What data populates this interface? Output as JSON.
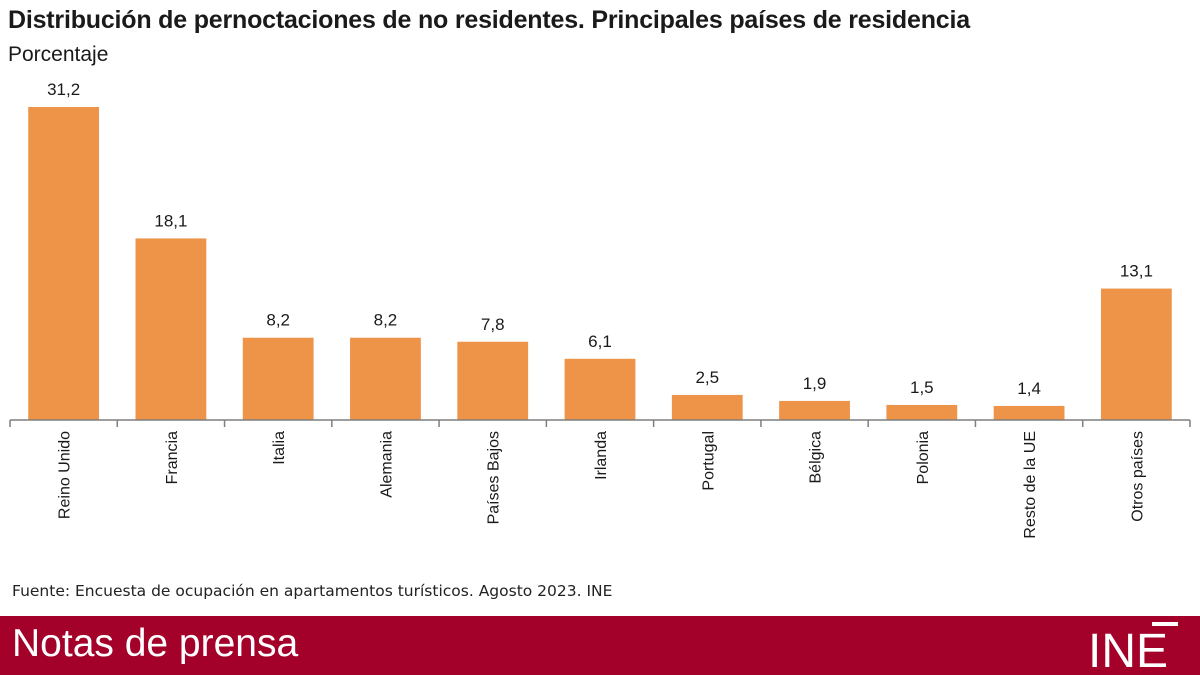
{
  "chart_data": {
    "type": "bar",
    "title": "Distribución de pernoctaciones de no residentes. Principales países de residencia",
    "subtitle": "Porcentaje",
    "categories": [
      "Reino Unido",
      "Francia",
      "Italia",
      "Alemania",
      "Países Bajos",
      "Irlanda",
      "Portugal",
      "Bélgica",
      "Polonia",
      "Resto de la UE",
      "Otros países"
    ],
    "values": [
      31.2,
      18.1,
      8.2,
      8.2,
      7.8,
      6.1,
      2.5,
      1.9,
      1.5,
      1.4,
      13.1
    ],
    "value_labels": [
      "31,2",
      "18,1",
      "8,2",
      "8,2",
      "7,8",
      "6,1",
      "2,5",
      "1,9",
      "1,5",
      "1,4",
      "13,1"
    ],
    "ylim": [
      0,
      31.2
    ],
    "bar_color": "#ed9448",
    "grid": false,
    "legend": "none"
  },
  "source": "Fuente: Encuesta de ocupación en apartamentos turísticos. Agosto 2023. INE",
  "footer": {
    "label": "Notas de prensa",
    "logo_text": "INE",
    "background": "#a3002a"
  }
}
